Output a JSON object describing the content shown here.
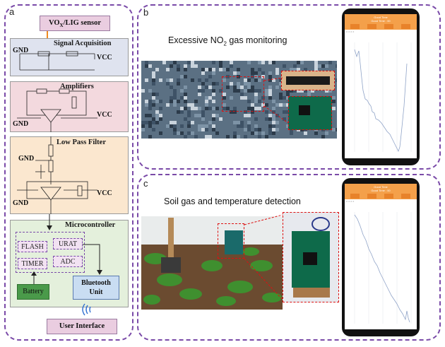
{
  "panels": {
    "a": {
      "label": "a"
    },
    "b": {
      "label": "b",
      "caption_pre": "Excessive NO",
      "caption_sub": "2",
      "caption_post": " gas monitoring"
    },
    "c": {
      "label": "c",
      "caption": "Soil gas and temperature detection"
    }
  },
  "sensor": {
    "pre": "VO",
    "sub": "X",
    "post": "/LIG sensor"
  },
  "blocks": {
    "signal": "Signal Acquisition",
    "amplifiers": "Amplifiers",
    "lowpass": "Low Pass Filter",
    "micro": "Microcontroller"
  },
  "power": {
    "gnd": "GND",
    "vcc": "VCC"
  },
  "chips": {
    "flash": "FLASH",
    "urat": "URAT",
    "timer": "TIMER",
    "adc": "ADC"
  },
  "battery": "Battery",
  "bluetooth": {
    "line1": "Bluetooth",
    "line2": "Unit"
  },
  "ui": "User Interface",
  "phone": {
    "title_line1": "Good Time",
    "title_line2": "Good Time : 00",
    "tabs": [
      "",
      "",
      "",
      ""
    ],
    "radios": "○ ○ ○ ○"
  },
  "colors": {
    "dash": "#7a4aa8",
    "signal_bg": "#dfe3ef",
    "amp_bg": "#f3d9de",
    "lp_bg": "#fbe7cf",
    "mc_bg": "#e4f0dc",
    "chip_bg": "#f2e2f2",
    "battery": "#4a9a4a",
    "bluetooth": "#c9ddf2",
    "ui": "#eacde0",
    "arrow": "#f08a20"
  }
}
